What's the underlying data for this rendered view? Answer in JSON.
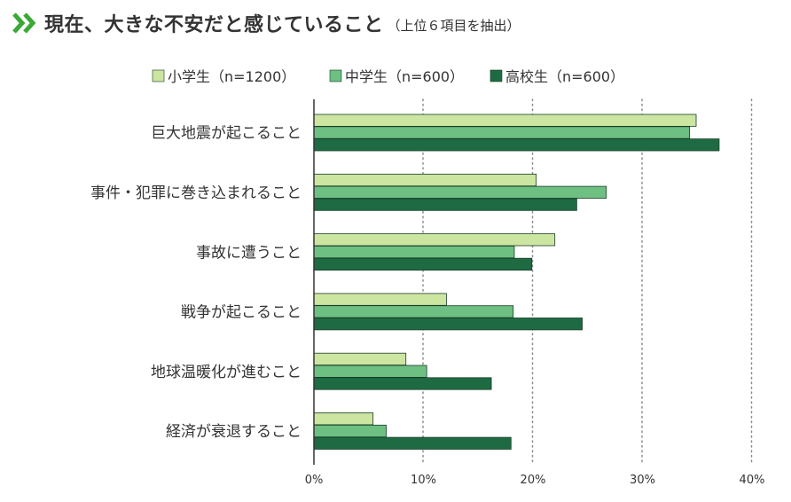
{
  "chart_data": {
    "type": "bar",
    "orientation": "horizontal",
    "title": "現在、大きな不安だと感じていること",
    "subtitle": "（上位６項目を抽出）",
    "categories": [
      "巨大地震が起こること",
      "事件・犯罪に巻き込まれること",
      "事故に遭うこと",
      "戦争が起こること",
      "地球温暖化が進むこと",
      "経済が衰退すること"
    ],
    "series": [
      {
        "name": "小学生（n=1200）",
        "color": "#cce5a0",
        "values": [
          34.9,
          20.3,
          22.0,
          12.1,
          8.4,
          5.4
        ]
      },
      {
        "name": "中学生（n=600）",
        "color": "#6dbf82",
        "values": [
          34.3,
          26.7,
          18.3,
          18.2,
          10.3,
          6.6
        ]
      },
      {
        "name": "高校生（n=600）",
        "color": "#1e6b43",
        "values": [
          37.0,
          24.0,
          19.9,
          24.5,
          16.2,
          18.0
        ]
      }
    ],
    "xlim": [
      0,
      40
    ],
    "xticks": [
      "0%",
      "10%",
      "20%",
      "30%",
      "40%"
    ],
    "grid": true,
    "legend": "top"
  }
}
